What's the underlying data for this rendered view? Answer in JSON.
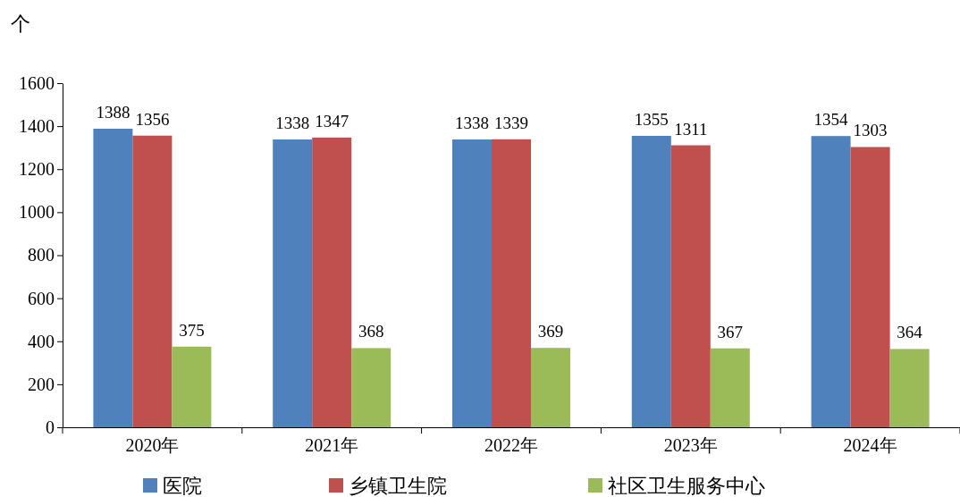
{
  "chart_data": {
    "type": "bar",
    "ylabel": "个",
    "categories": [
      "2020年",
      "2021年",
      "2022年",
      "2023年",
      "2024年"
    ],
    "series": [
      {
        "name": "医院",
        "color": "#4f81bd",
        "values": [
          1388,
          1338,
          1338,
          1355,
          1354
        ]
      },
      {
        "name": "乡镇卫生院",
        "color": "#c0504d",
        "values": [
          1356,
          1347,
          1339,
          1311,
          1303
        ]
      },
      {
        "name": "社区卫生服务中心",
        "color": "#9bbb59",
        "values": [
          375,
          368,
          369,
          367,
          364
        ]
      }
    ],
    "ylim": [
      0,
      1600
    ],
    "yticks": [
      0,
      200,
      400,
      600,
      800,
      1000,
      1200,
      1400,
      1600
    ],
    "data_labels": true,
    "legend": "bottom",
    "grid": false
  }
}
